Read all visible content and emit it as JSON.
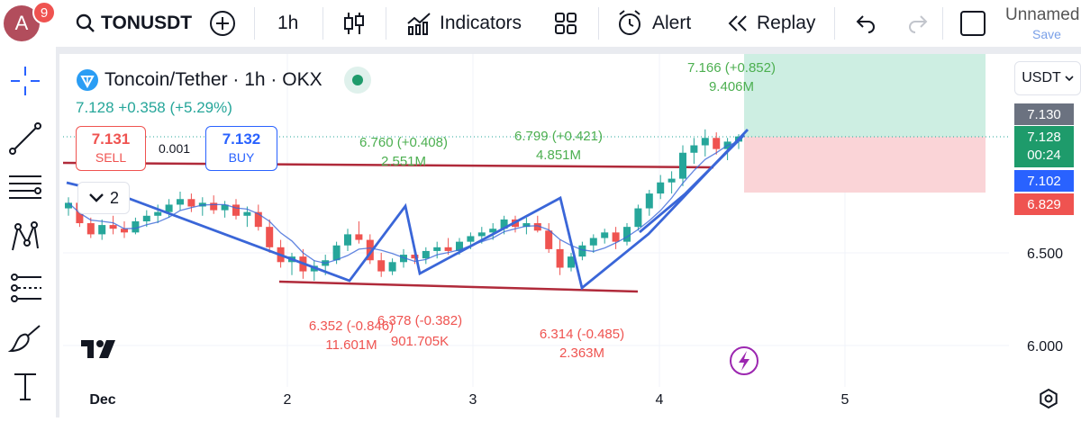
{
  "topbar": {
    "avatar_letter": "A",
    "avatar_badge": "9",
    "symbol": "TONUSDT",
    "interval": "1h",
    "indicators_label": "Indicators",
    "alert_label": "Alert",
    "replay_label": "Replay",
    "layout_name": "Unnamed",
    "save_label": "Save"
  },
  "legend": {
    "title": "Toncoin/Tether · 1h · OKX",
    "change": "7.128  +0.358 (+5.29%)",
    "sell_price": "7.131",
    "sell_label": "SELL",
    "spread": "0.001",
    "buy_price": "7.132",
    "buy_label": "BUY",
    "collapse_count": "2"
  },
  "currency_select": "USDT",
  "price_pills": {
    "p1": "7.130",
    "p2": "7.128",
    "p2_timer": "00:24",
    "p3": "7.102",
    "p4": "6.829"
  },
  "colors": {
    "up": "#26a69a",
    "down": "#ef5350",
    "line_blue": "#3a66d8",
    "horiz_line": "#b02a3a",
    "zone_green": "#cdeee2",
    "zone_red": "#fad4d7",
    "annotation_green": "#4caf50",
    "annotation_red": "#ef5350"
  },
  "chart_data": {
    "type": "candlestick",
    "ylim": [
      5.8,
      7.6
    ],
    "y_ticks": [
      "6.000",
      "6.500"
    ],
    "x_ticks": [
      "Dec",
      "2",
      "3",
      "4",
      "5"
    ],
    "annotations": [
      {
        "text": "7.166 (+0.852)",
        "text2": "9.406M",
        "kind": "high"
      },
      {
        "text": "6.760 (+0.408)",
        "text2": "2.551M",
        "kind": "high"
      },
      {
        "text": "6.799 (+0.421)",
        "text2": "4.851M",
        "kind": "high"
      },
      {
        "text": "6.352 (-0.846)",
        "text2": "11.601M",
        "kind": "low"
      },
      {
        "text": "6.378 (-0.382)",
        "text2": "901.705K",
        "kind": "low"
      },
      {
        "text": "6.314 (-0.485)",
        "text2": "2.363M",
        "kind": "low"
      }
    ],
    "series": [
      {
        "name": "",
        "ohlc": [
          [
            6.74,
            6.8,
            6.7,
            6.77
          ],
          [
            6.77,
            6.79,
            6.64,
            6.66
          ],
          [
            6.66,
            6.69,
            6.58,
            6.6
          ],
          [
            6.6,
            6.68,
            6.57,
            6.65
          ],
          [
            6.65,
            6.7,
            6.6,
            6.63
          ],
          [
            6.63,
            6.67,
            6.58,
            6.61
          ],
          [
            6.61,
            6.69,
            6.6,
            6.67
          ],
          [
            6.67,
            6.73,
            6.64,
            6.7
          ],
          [
            6.7,
            6.76,
            6.66,
            6.72
          ],
          [
            6.72,
            6.79,
            6.69,
            6.76
          ],
          [
            6.76,
            6.83,
            6.73,
            6.79
          ],
          [
            6.79,
            6.82,
            6.72,
            6.75
          ],
          [
            6.75,
            6.8,
            6.7,
            6.77
          ],
          [
            6.77,
            6.81,
            6.71,
            6.73
          ],
          [
            6.73,
            6.78,
            6.69,
            6.76
          ],
          [
            6.76,
            6.79,
            6.68,
            6.7
          ],
          [
            6.7,
            6.75,
            6.64,
            6.72
          ],
          [
            6.72,
            6.76,
            6.62,
            6.64
          ],
          [
            6.64,
            6.68,
            6.5,
            6.53
          ],
          [
            6.53,
            6.57,
            6.42,
            6.45
          ],
          [
            6.45,
            6.5,
            6.38,
            6.48
          ],
          [
            6.48,
            6.52,
            6.36,
            6.4
          ],
          [
            6.4,
            6.46,
            6.35,
            6.43
          ],
          [
            6.43,
            6.49,
            6.38,
            6.46
          ],
          [
            6.46,
            6.56,
            6.44,
            6.54
          ],
          [
            6.54,
            6.63,
            6.51,
            6.6
          ],
          [
            6.6,
            6.67,
            6.55,
            6.57
          ],
          [
            6.57,
            6.6,
            6.44,
            6.46
          ],
          [
            6.46,
            6.5,
            6.37,
            6.4
          ],
          [
            6.4,
            6.47,
            6.38,
            6.45
          ],
          [
            6.45,
            6.52,
            6.42,
            6.49
          ],
          [
            6.49,
            6.53,
            6.44,
            6.47
          ],
          [
            6.47,
            6.53,
            6.44,
            6.51
          ],
          [
            6.51,
            6.56,
            6.47,
            6.53
          ],
          [
            6.53,
            6.58,
            6.49,
            6.51
          ],
          [
            6.51,
            6.58,
            6.49,
            6.56
          ],
          [
            6.56,
            6.61,
            6.52,
            6.59
          ],
          [
            6.59,
            6.64,
            6.55,
            6.61
          ],
          [
            6.61,
            6.66,
            6.57,
            6.63
          ],
          [
            6.63,
            6.7,
            6.6,
            6.68
          ],
          [
            6.68,
            6.7,
            6.61,
            6.64
          ],
          [
            6.64,
            6.69,
            6.6,
            6.66
          ],
          [
            6.66,
            6.7,
            6.61,
            6.62
          ],
          [
            6.62,
            6.66,
            6.5,
            6.52
          ],
          [
            6.52,
            6.57,
            6.38,
            6.42
          ],
          [
            6.42,
            6.5,
            6.4,
            6.48
          ],
          [
            6.48,
            6.56,
            6.46,
            6.54
          ],
          [
            6.54,
            6.6,
            6.5,
            6.58
          ],
          [
            6.58,
            6.63,
            6.55,
            6.61
          ],
          [
            6.61,
            6.64,
            6.52,
            6.56
          ],
          [
            6.56,
            6.66,
            6.54,
            6.64
          ],
          [
            6.64,
            6.76,
            6.62,
            6.74
          ],
          [
            6.74,
            6.84,
            6.7,
            6.82
          ],
          [
            6.82,
            6.92,
            6.79,
            6.88
          ],
          [
            6.88,
            6.94,
            6.82,
            6.9
          ],
          [
            6.9,
            7.08,
            6.86,
            7.04
          ],
          [
            7.04,
            7.12,
            6.98,
            7.08
          ],
          [
            7.08,
            7.166,
            7.02,
            7.12
          ],
          [
            7.12,
            7.15,
            7.03,
            7.06
          ],
          [
            7.06,
            7.12,
            7.0,
            7.1
          ],
          [
            7.1,
            7.14,
            7.06,
            7.128
          ]
        ]
      }
    ]
  }
}
